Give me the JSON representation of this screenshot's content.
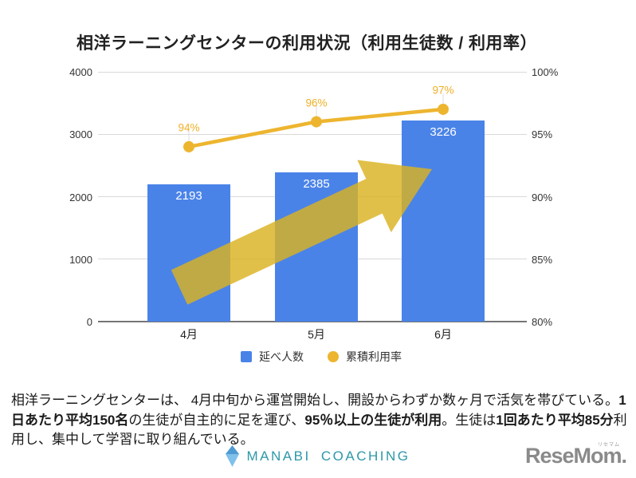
{
  "title": "相洋ラーニングセンターの利用状況（利用生徒数 / 利用率）",
  "chart_data": {
    "type": "bar",
    "subtype": "combo-bar-line",
    "categories": [
      "4月",
      "5月",
      "6月"
    ],
    "series": [
      {
        "name": "延べ人数",
        "type": "bar",
        "axis": "left",
        "values": [
          2193,
          2385,
          3226
        ],
        "color": "#4a83e8",
        "data_labels": [
          "2193",
          "2385",
          "3226"
        ]
      },
      {
        "name": "累積利用率",
        "type": "line",
        "axis": "right",
        "values": [
          94,
          96,
          97
        ],
        "unit": "%",
        "color": "#edb52f",
        "data_labels": [
          "94%",
          "96%",
          "97%"
        ]
      }
    ],
    "left_axis": {
      "min": 0,
      "max": 4000,
      "ticks": [
        "4000",
        "3000",
        "2000",
        "1000",
        "0"
      ]
    },
    "right_axis": {
      "min": 80,
      "max": 100,
      "ticks": [
        "100%",
        "95%",
        "90%",
        "85%",
        "80%"
      ]
    },
    "grid": "horizontal",
    "legend_position": "bottom",
    "legend": [
      {
        "label": "延べ人数",
        "shape": "square",
        "color": "#4a83e8"
      },
      {
        "label": "累積利用率",
        "shape": "circle",
        "color": "#edb52f"
      }
    ]
  },
  "annotation_arrow": {
    "meaning": "upward-trend",
    "color": "rgba(219,178,33,0.82)"
  },
  "description": {
    "segments": [
      {
        "text": "相洋ラーニングセンターは、 4月中旬から運営開始し、開設からわずか数ヶ月で活気を帯びている。",
        "bold": false
      },
      {
        "text": "1日あたり平均150名",
        "bold": true
      },
      {
        "text": "の生徒が自主的に足を運び、",
        "bold": false
      },
      {
        "text": "95％以上の生徒が利用",
        "bold": true
      },
      {
        "text": "。生徒は",
        "bold": false
      },
      {
        "text": "1回あたり平均85分",
        "bold": true
      },
      {
        "text": "利用し、集中して学習に取り組んでいる。",
        "bold": false
      }
    ]
  },
  "footer": {
    "brand": "MANABI COACHING",
    "brand_color": "#2d98a8",
    "watermark": "ReseMom.",
    "watermark_small": "リセマム"
  }
}
